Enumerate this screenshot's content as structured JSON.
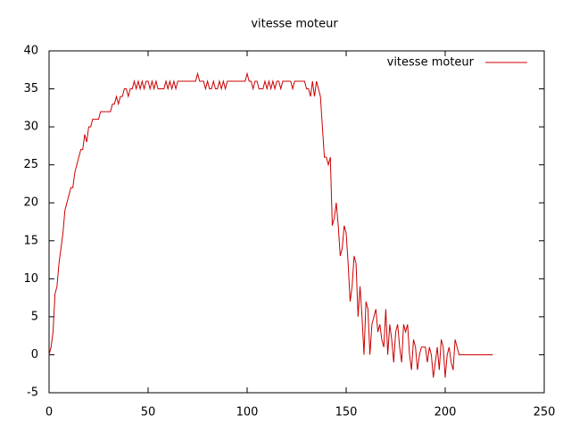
{
  "chart_data": {
    "type": "line",
    "title": "vitesse moteur",
    "x": [
      0,
      1,
      2,
      3,
      4,
      5,
      6,
      7,
      8,
      9,
      10,
      11,
      12,
      13,
      14,
      15,
      16,
      17,
      18,
      19,
      20,
      21,
      22,
      23,
      24,
      25,
      26,
      27,
      28,
      29,
      30,
      31,
      32,
      33,
      34,
      35,
      36,
      37,
      38,
      39,
      40,
      41,
      42,
      43,
      44,
      45,
      46,
      47,
      48,
      49,
      50,
      51,
      52,
      53,
      54,
      55,
      56,
      57,
      58,
      59,
      60,
      61,
      62,
      63,
      64,
      65,
      66,
      67,
      68,
      69,
      70,
      71,
      72,
      73,
      74,
      75,
      76,
      77,
      78,
      79,
      80,
      81,
      82,
      83,
      84,
      85,
      86,
      87,
      88,
      89,
      90,
      91,
      92,
      93,
      94,
      95,
      96,
      97,
      98,
      99,
      100,
      101,
      102,
      103,
      104,
      105,
      106,
      107,
      108,
      109,
      110,
      111,
      112,
      113,
      114,
      115,
      116,
      117,
      118,
      119,
      120,
      121,
      122,
      123,
      124,
      125,
      126,
      127,
      128,
      129,
      130,
      131,
      132,
      133,
      134,
      135,
      136,
      137,
      138,
      139,
      140,
      141,
      142,
      143,
      144,
      145,
      146,
      147,
      148,
      149,
      150,
      151,
      152,
      153,
      154,
      155,
      156,
      157,
      158,
      159,
      160,
      161,
      162,
      163,
      164,
      165,
      166,
      167,
      168,
      169,
      170,
      171,
      172,
      173,
      174,
      175,
      176,
      177,
      178,
      179,
      180,
      181,
      182,
      183,
      184,
      185,
      186,
      187,
      188,
      189,
      190,
      191,
      192,
      193,
      194,
      195,
      196,
      197,
      198,
      199,
      200,
      201,
      202,
      203,
      204,
      205,
      206,
      207,
      208,
      209,
      210,
      211,
      212,
      213,
      214,
      215,
      216,
      217,
      218,
      219,
      220,
      221,
      222,
      223,
      224
    ],
    "series": [
      {
        "name": "vitesse moteur",
        "color": "#cc0000",
        "values": [
          0,
          1,
          3,
          8,
          9,
          12,
          14,
          16,
          19,
          20,
          21,
          22,
          22,
          24,
          25,
          26,
          27,
          27,
          29,
          28,
          30,
          30,
          31,
          31,
          31,
          31,
          32,
          32,
          32,
          32,
          32,
          32,
          33,
          33,
          34,
          33,
          34,
          34,
          35,
          35,
          34,
          35,
          35,
          36,
          35,
          36,
          35,
          36,
          35,
          36,
          36,
          35,
          36,
          35,
          36,
          35,
          35,
          35,
          35,
          36,
          35,
          36,
          35,
          36,
          35,
          36,
          36,
          36,
          36,
          36,
          36,
          36,
          36,
          36,
          36,
          37,
          36,
          36,
          36,
          35,
          36,
          35,
          35,
          36,
          35,
          35,
          36,
          35,
          36,
          35,
          36,
          36,
          36,
          36,
          36,
          36,
          36,
          36,
          36,
          36,
          37,
          36,
          36,
          35,
          36,
          36,
          35,
          35,
          35,
          36,
          35,
          36,
          35,
          36,
          35,
          36,
          36,
          35,
          36,
          36,
          36,
          36,
          36,
          35,
          36,
          36,
          36,
          36,
          36,
          36,
          35,
          35,
          34,
          36,
          34,
          36,
          35,
          34,
          30,
          26,
          26,
          25,
          26,
          17,
          18,
          20,
          17,
          13,
          14,
          17,
          16,
          12,
          7,
          9,
          13,
          12,
          5,
          9,
          5,
          0,
          7,
          6,
          0,
          4,
          5,
          6,
          3,
          4,
          2,
          1,
          6,
          0,
          4,
          2,
          -1,
          3,
          4,
          1,
          -1,
          4,
          3,
          4,
          0,
          -2,
          2,
          1,
          -2,
          0,
          1,
          1,
          1,
          -1,
          1,
          0,
          -3,
          -1,
          1,
          -2,
          2,
          1,
          -3,
          0,
          1,
          -1,
          -2,
          2,
          1,
          0,
          0,
          0,
          0,
          0,
          0,
          0,
          0,
          0,
          0,
          0,
          0,
          0,
          0,
          0,
          0,
          0,
          0
        ]
      }
    ],
    "xlim": [
      0,
      250
    ],
    "xticks": [
      0,
      50,
      100,
      150,
      200,
      250
    ],
    "ylim": [
      -5,
      40
    ],
    "yticks": [
      -5,
      0,
      5,
      10,
      15,
      20,
      25,
      30,
      35,
      40
    ],
    "legend": "upper right"
  }
}
